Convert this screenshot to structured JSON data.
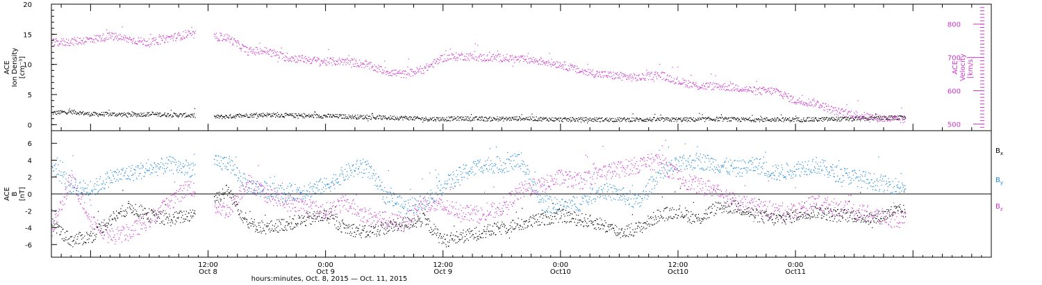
{
  "colors": {
    "axis": "#000000",
    "density": "#000000",
    "velocity": "#cc33cc",
    "bx": "#000000",
    "by": "#1a88d8",
    "bz": "#cc33cc"
  },
  "chart_data": [
    {
      "type": "scatter",
      "panel": "top",
      "ylabel_lines": [
        "ACE",
        "Ion Density",
        "[cm⁻³]"
      ],
      "ylim": [
        -1,
        20
      ],
      "yticks": [
        0,
        5,
        10,
        15,
        20
      ],
      "y2label_lines": [
        "ACE",
        "Velocity",
        "[km/s]"
      ],
      "y2lim": [
        480,
        860
      ],
      "y2ticks": [
        500,
        600,
        700,
        800
      ],
      "xlim_hours": [
        -16,
        80
      ],
      "gaps_hours": [
        [
          -1.3,
          0.6
        ]
      ],
      "data_end_hours": [
        67.8,
        71.2
      ],
      "series": [
        {
          "name": "Ion Density",
          "axis": "left",
          "x_hours": [
            -16,
            -14,
            -12,
            -10,
            -8,
            -6,
            -4,
            -2,
            0,
            2,
            4,
            6,
            8,
            10,
            12,
            14,
            16,
            18,
            20,
            22,
            24,
            26,
            28,
            30,
            32,
            34,
            36,
            38,
            40,
            42,
            44,
            46,
            48,
            50,
            52,
            54,
            56,
            58,
            60,
            62,
            64,
            66,
            68,
            70
          ],
          "values": [
            2.0,
            2.2,
            1.8,
            1.8,
            1.7,
            1.8,
            1.7,
            1.6,
            1.3,
            1.4,
            1.6,
            1.7,
            1.6,
            1.5,
            1.5,
            1.4,
            1.3,
            1.2,
            1.2,
            1.0,
            1.0,
            1.1,
            1.0,
            1.0,
            1.1,
            1.0,
            0.9,
            0.9,
            0.9,
            0.9,
            0.9,
            0.9,
            0.9,
            0.9,
            1.0,
            0.9,
            0.9,
            0.9,
            0.9,
            0.9,
            1.0,
            1.0,
            1.1,
            1.2
          ]
        },
        {
          "name": "Velocity",
          "axis": "right",
          "x_hours": [
            -16,
            -14,
            -12,
            -10,
            -8,
            -6,
            -4,
            -2,
            0,
            2,
            4,
            6,
            8,
            10,
            12,
            14,
            16,
            18,
            20,
            22,
            24,
            26,
            28,
            30,
            32,
            34,
            36,
            38,
            40,
            42,
            44,
            46,
            48,
            50,
            52,
            54,
            56,
            58,
            60,
            62,
            64,
            66,
            68,
            70
          ],
          "values": [
            745,
            748,
            755,
            765,
            755,
            745,
            760,
            770,
            765,
            760,
            720,
            720,
            700,
            695,
            688,
            690,
            680,
            660,
            650,
            665,
            700,
            705,
            700,
            700,
            695,
            690,
            680,
            660,
            650,
            645,
            640,
            650,
            630,
            615,
            615,
            610,
            600,
            600,
            570,
            565,
            540,
            530,
            520,
            515
          ]
        }
      ]
    },
    {
      "type": "scatter",
      "panel": "bottom",
      "ylabel_lines": [
        "ACE",
        "B",
        "[nT]"
      ],
      "ylim": [
        -7.5,
        7.5
      ],
      "yticks": [
        -6,
        -4,
        -2,
        0,
        2,
        4,
        6
      ],
      "zero_line": true,
      "xlabel": "hours:minutes, Oct.  8, 2015 — Oct. 11, 2015",
      "xlim_hours": [
        -16,
        80
      ],
      "gaps_hours": [
        [
          -1.3,
          0.6
        ]
      ],
      "data_end_hours": [
        67.8,
        71.2
      ],
      "legend_position": "right",
      "series": [
        {
          "name": "Bx",
          "label_base": "B",
          "label_sub": "x",
          "x_hours": [
            -16,
            -14,
            -12,
            -10,
            -8,
            -6,
            -4,
            -2,
            0,
            2,
            4,
            6,
            8,
            10,
            12,
            14,
            16,
            18,
            20,
            22,
            24,
            26,
            28,
            30,
            32,
            34,
            36,
            38,
            40,
            42,
            44,
            46,
            48,
            50,
            52,
            54,
            56,
            58,
            60,
            62,
            64,
            66,
            68,
            70
          ],
          "values": [
            -3.5,
            -5.5,
            -5.0,
            -3.0,
            -1.5,
            -2.5,
            -3.0,
            -2.5,
            -1.0,
            0.5,
            -3.5,
            -4.0,
            -3.5,
            -3.0,
            -2.5,
            -4.0,
            -4.5,
            -4.0,
            -3.5,
            -3.0,
            -5.5,
            -5.0,
            -4.5,
            -4.0,
            -3.5,
            -3.0,
            -2.5,
            -3.0,
            -3.5,
            -4.5,
            -4.0,
            -2.5,
            -2.0,
            -3.0,
            -1.5,
            -1.5,
            -2.5,
            -3.0,
            -2.5,
            -2.0,
            -2.5,
            -2.5,
            -3.0,
            -2.0
          ]
        },
        {
          "name": "By",
          "label_base": "B",
          "label_sub": "y",
          "x_hours": [
            -16,
            -14,
            -12,
            -10,
            -8,
            -6,
            -4,
            -2,
            0,
            2,
            4,
            6,
            8,
            10,
            12,
            14,
            16,
            18,
            20,
            22,
            24,
            26,
            28,
            30,
            32,
            34,
            36,
            38,
            40,
            42,
            44,
            46,
            48,
            50,
            52,
            54,
            56,
            58,
            60,
            62,
            64,
            66,
            68,
            70
          ],
          "values": [
            3.5,
            1.0,
            0.5,
            2.0,
            2.5,
            3.0,
            3.5,
            3.0,
            3.5,
            3.8,
            1.0,
            0.5,
            0.0,
            0.5,
            1.0,
            2.5,
            3.5,
            0.0,
            -1.5,
            -1.0,
            1.0,
            2.5,
            3.5,
            3.5,
            4.0,
            -1.0,
            -1.5,
            -1.0,
            0.5,
            0.0,
            -1.0,
            2.5,
            3.5,
            4.0,
            3.5,
            3.0,
            3.5,
            2.5,
            3.0,
            3.5,
            2.5,
            2.0,
            1.5,
            1.0
          ]
        },
        {
          "name": "Bz",
          "label_base": "B",
          "label_sub": "z",
          "x_hours": [
            -16,
            -14,
            -12,
            -10,
            -8,
            -6,
            -4,
            -2,
            0,
            2,
            4,
            6,
            8,
            10,
            12,
            14,
            16,
            18,
            20,
            22,
            24,
            26,
            28,
            30,
            32,
            34,
            36,
            38,
            40,
            42,
            44,
            46,
            48,
            50,
            52,
            54,
            56,
            58,
            60,
            62,
            64,
            66,
            68,
            70
          ],
          "values": [
            -4.5,
            2.0,
            -3.0,
            -5.0,
            -4.5,
            -3.0,
            -1.0,
            1.0,
            -1.0,
            -2.0,
            1.5,
            0.0,
            -1.0,
            -1.5,
            -2.0,
            -1.0,
            -2.5,
            -3.0,
            -3.5,
            -1.0,
            -1.5,
            -2.0,
            -2.5,
            -1.5,
            0.5,
            1.0,
            2.0,
            1.5,
            2.5,
            3.0,
            3.5,
            4.0,
            2.0,
            1.0,
            0.5,
            -1.0,
            -1.5,
            -2.0,
            -2.0,
            -1.0,
            -1.5,
            -2.0,
            -2.5,
            -3.0
          ]
        }
      ]
    }
  ],
  "x_axis": {
    "ticks": [
      {
        "hours": 0,
        "time": "12:00",
        "date": "Oct 8"
      },
      {
        "hours": 12,
        "time": "0:00",
        "date": "Oct 9"
      },
      {
        "hours": 24,
        "time": "12:00",
        "date": "Oct 9"
      },
      {
        "hours": 36,
        "time": "0:00",
        "date": "Oct10"
      },
      {
        "hours": 48,
        "time": "12:00",
        "date": "Oct10"
      },
      {
        "hours": 60,
        "time": "0:00",
        "date": "Oct11"
      }
    ]
  }
}
